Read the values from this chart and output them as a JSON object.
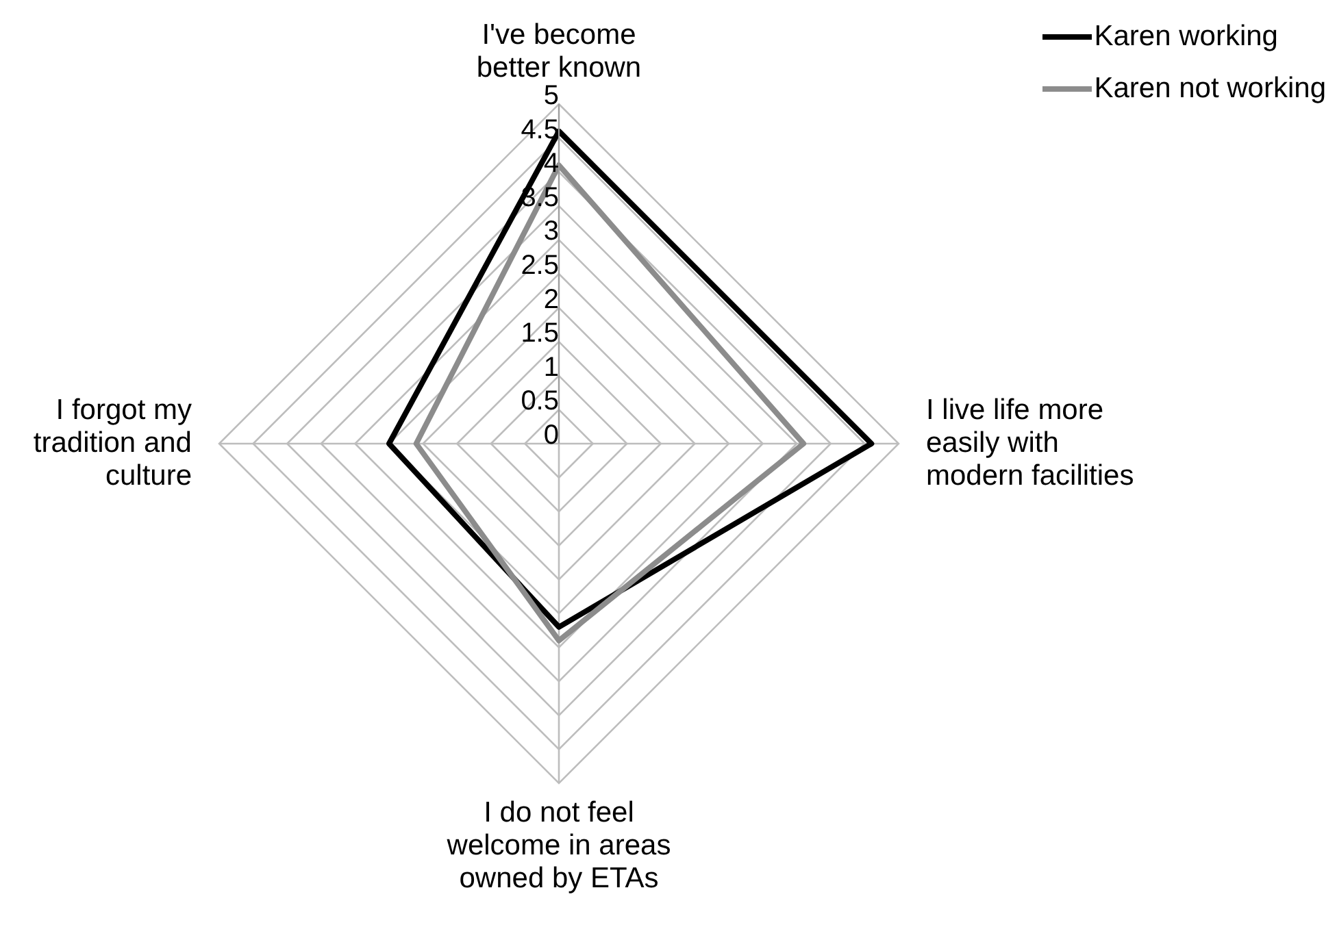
{
  "chart_data": {
    "type": "radar",
    "categories": [
      "I've become better known",
      "I live life more easily with modern facilities",
      "I do not feel welcome in areas owned by ETAs",
      "I forgot my tradition and culture"
    ],
    "series": [
      {
        "name": "Karen working",
        "color": "#000000",
        "values": [
          4.6,
          4.6,
          2.7,
          2.5
        ]
      },
      {
        "name": "Karen not working",
        "color": "#8c8c8c",
        "values": [
          4.1,
          3.6,
          2.9,
          2.1
        ]
      }
    ],
    "ylim": [
      0,
      5
    ],
    "yticks": [
      0,
      0.5,
      1,
      1.5,
      2,
      2.5,
      3,
      3.5,
      4,
      4.5,
      5
    ],
    "grid": true,
    "legend": "top right",
    "marker": "none"
  }
}
